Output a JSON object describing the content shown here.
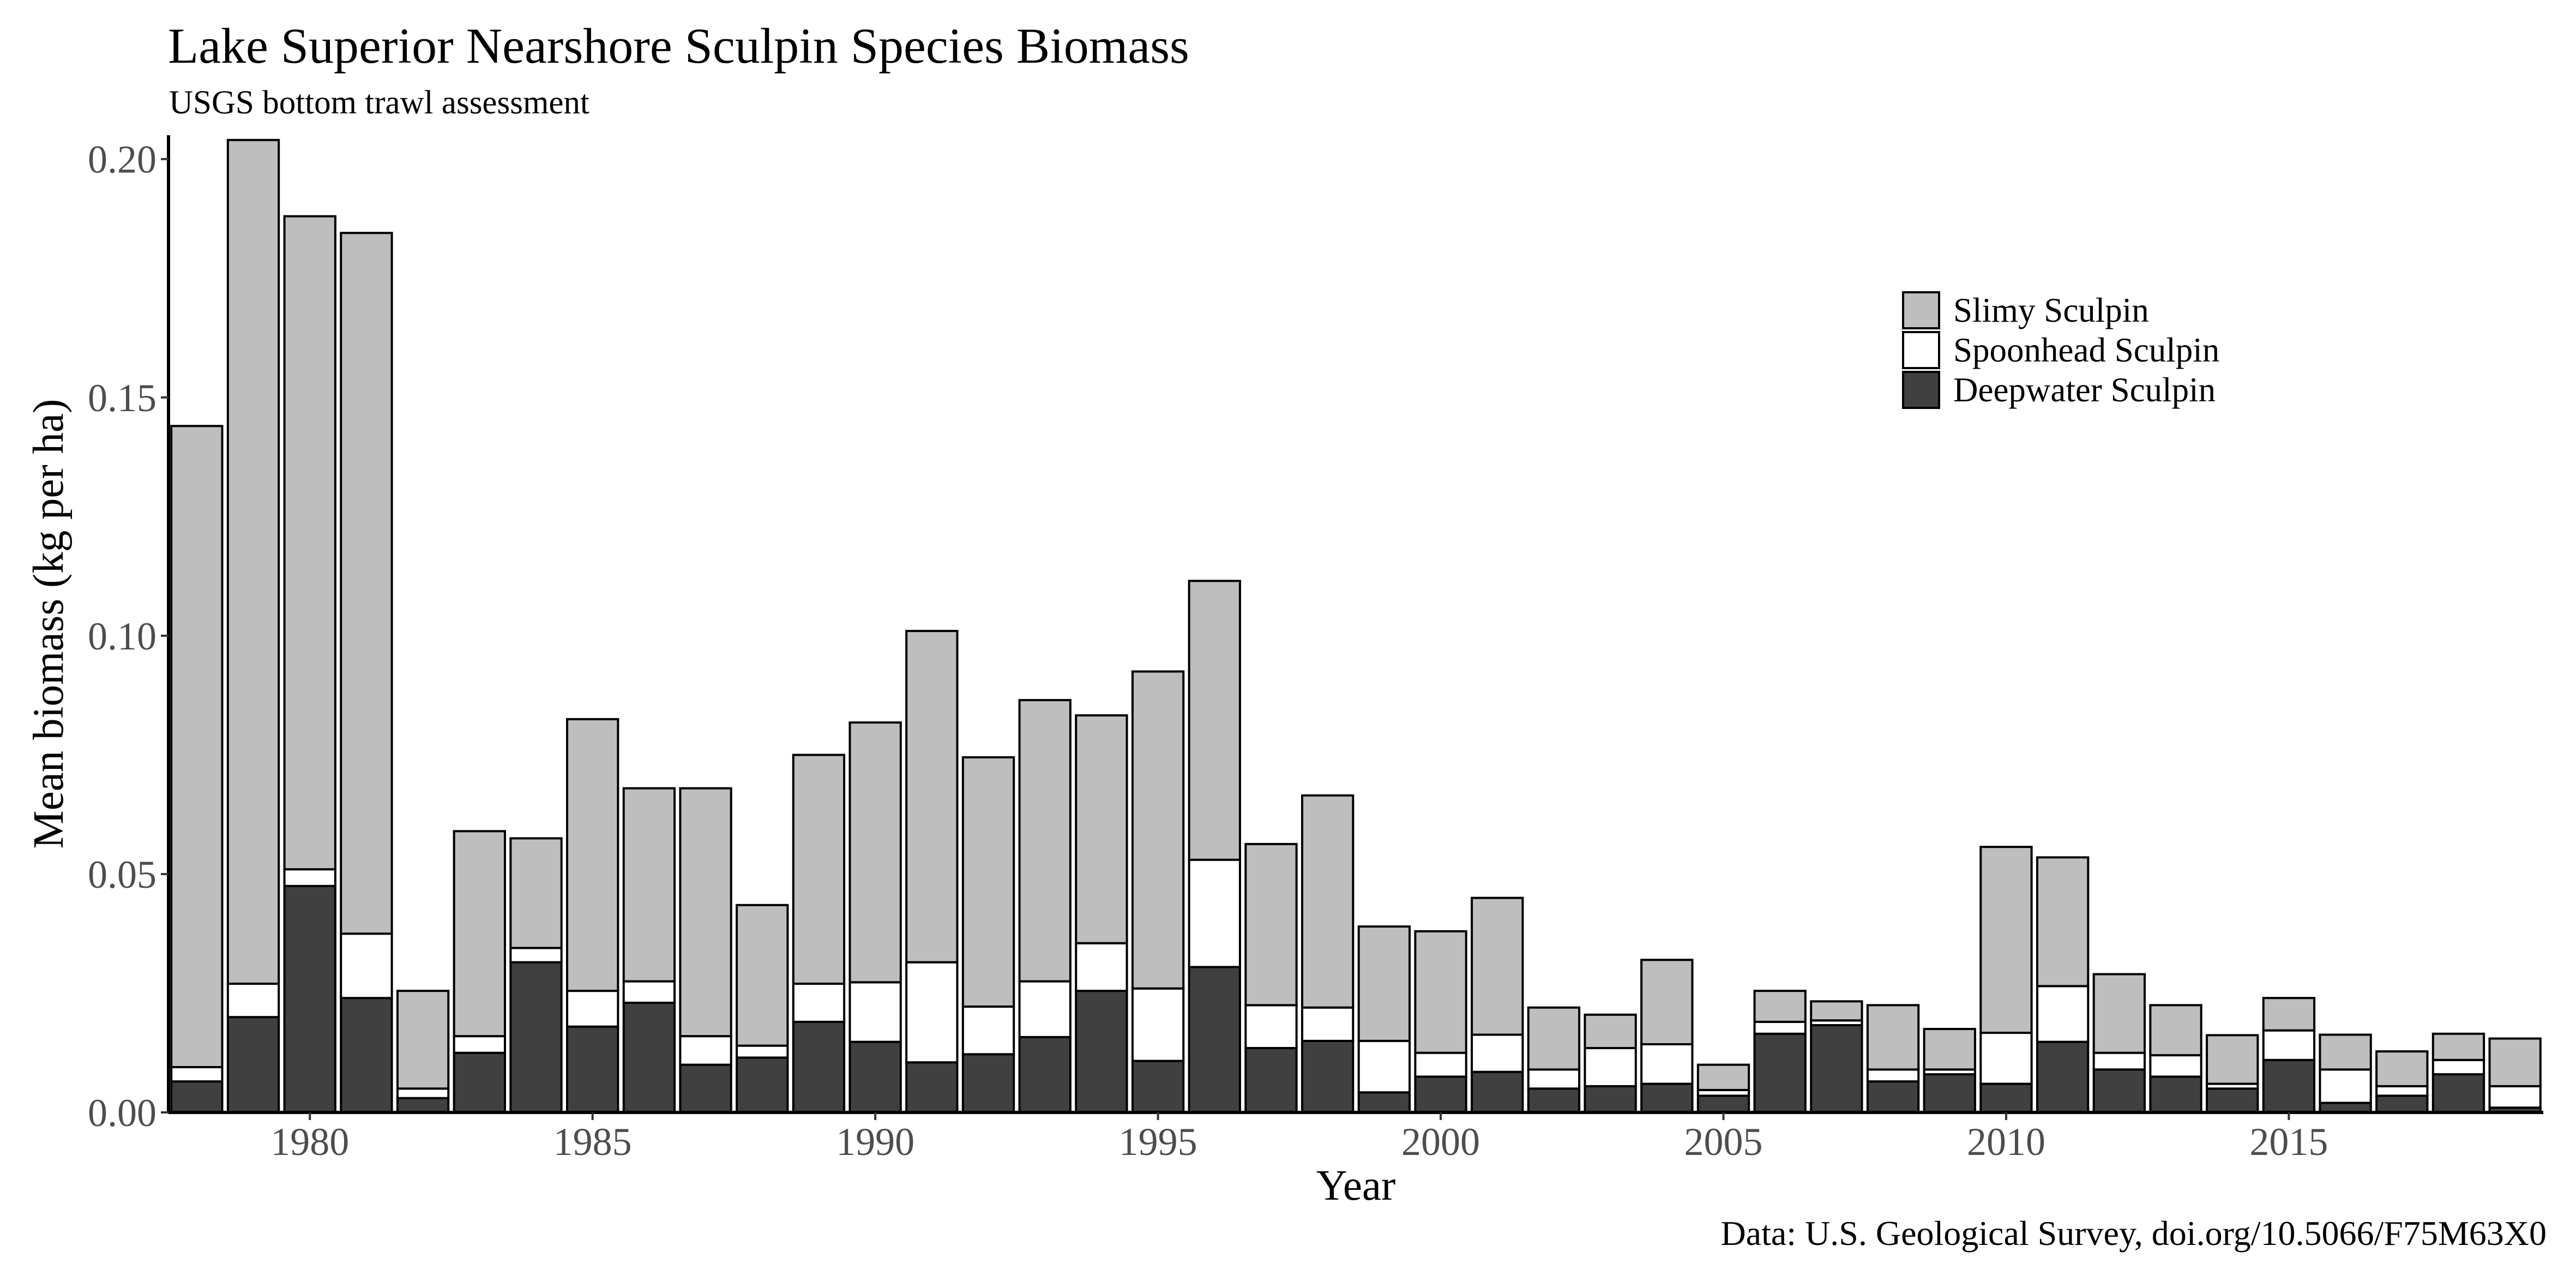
{
  "title": "Lake Superior Nearshore Sculpin Species Biomass",
  "subtitle": "USGS bottom trawl assessment",
  "caption": "Data: U.S. Geological Survey, doi.org/10.5066/F75M63X0",
  "colors": {
    "slimy": "#bebebe",
    "spoonhead": "#ffffff",
    "deepwater": "#404040",
    "outline": "#000000"
  },
  "chart_data": {
    "type": "bar",
    "stacked": true,
    "xlabel": "Year",
    "ylabel": "Mean biomass (kg per ha)",
    "xlim": [
      1977.5,
      2019.5
    ],
    "ylim": [
      0,
      0.205
    ],
    "x_ticks": [
      1980,
      1985,
      1990,
      1995,
      2000,
      2005,
      2010,
      2015
    ],
    "y_ticks": [
      0.0,
      0.05,
      0.1,
      0.15,
      0.2
    ],
    "y_tick_labels": [
      "0.00",
      "0.05",
      "0.10",
      "0.15",
      "0.20"
    ],
    "legend_position": "top-right",
    "grid": false,
    "categories": [
      1978,
      1979,
      1980,
      1981,
      1982,
      1983,
      1984,
      1985,
      1986,
      1987,
      1988,
      1989,
      1990,
      1991,
      1992,
      1993,
      1994,
      1995,
      1996,
      1997,
      1998,
      1999,
      2000,
      2001,
      2002,
      2003,
      2004,
      2005,
      2006,
      2007,
      2008,
      2009,
      2010,
      2011,
      2012,
      2013,
      2014,
      2015,
      2016,
      2017,
      2018,
      2019
    ],
    "series": [
      {
        "name": "Deepwater Sculpin",
        "values": [
          0.0065,
          0.02,
          0.0475,
          0.024,
          0.003,
          0.0125,
          0.0315,
          0.018,
          0.023,
          0.01,
          0.0115,
          0.019,
          0.0148,
          0.0105,
          0.0122,
          0.0158,
          0.0255,
          0.0108,
          0.0305,
          0.0135,
          0.015,
          0.0042,
          0.0075,
          0.0085,
          0.005,
          0.0055,
          0.006,
          0.0035,
          0.0165,
          0.0183,
          0.0065,
          0.008,
          0.006,
          0.0148,
          0.009,
          0.0075,
          0.005,
          0.011,
          0.002,
          0.0035,
          0.008,
          0.001
        ]
      },
      {
        "name": "Spoonhead Sculpin",
        "values": [
          0.003,
          0.007,
          0.0035,
          0.0135,
          0.002,
          0.0035,
          0.003,
          0.0075,
          0.0045,
          0.006,
          0.0025,
          0.008,
          0.0125,
          0.021,
          0.01,
          0.0117,
          0.01,
          0.0152,
          0.0225,
          0.009,
          0.007,
          0.0108,
          0.005,
          0.0078,
          0.004,
          0.008,
          0.0083,
          0.0012,
          0.0025,
          0.001,
          0.0025,
          0.001,
          0.0107,
          0.0117,
          0.0035,
          0.0045,
          0.001,
          0.0062,
          0.007,
          0.002,
          0.003,
          0.0045
        ]
      },
      {
        "name": "Slimy Sculpin",
        "values": [
          0.1345,
          0.177,
          0.137,
          0.147,
          0.0205,
          0.043,
          0.023,
          0.057,
          0.0405,
          0.052,
          0.0295,
          0.048,
          0.0545,
          0.0695,
          0.0523,
          0.059,
          0.0478,
          0.0665,
          0.0585,
          0.0338,
          0.0445,
          0.024,
          0.0255,
          0.0287,
          0.013,
          0.007,
          0.0177,
          0.0053,
          0.0065,
          0.004,
          0.0135,
          0.0085,
          0.039,
          0.027,
          0.0165,
          0.0105,
          0.0102,
          0.0068,
          0.0073,
          0.0073,
          0.0055,
          0.01
        ]
      }
    ],
    "legend": [
      "Slimy Sculpin",
      "Spoonhead Sculpin",
      "Deepwater Sculpin"
    ]
  }
}
